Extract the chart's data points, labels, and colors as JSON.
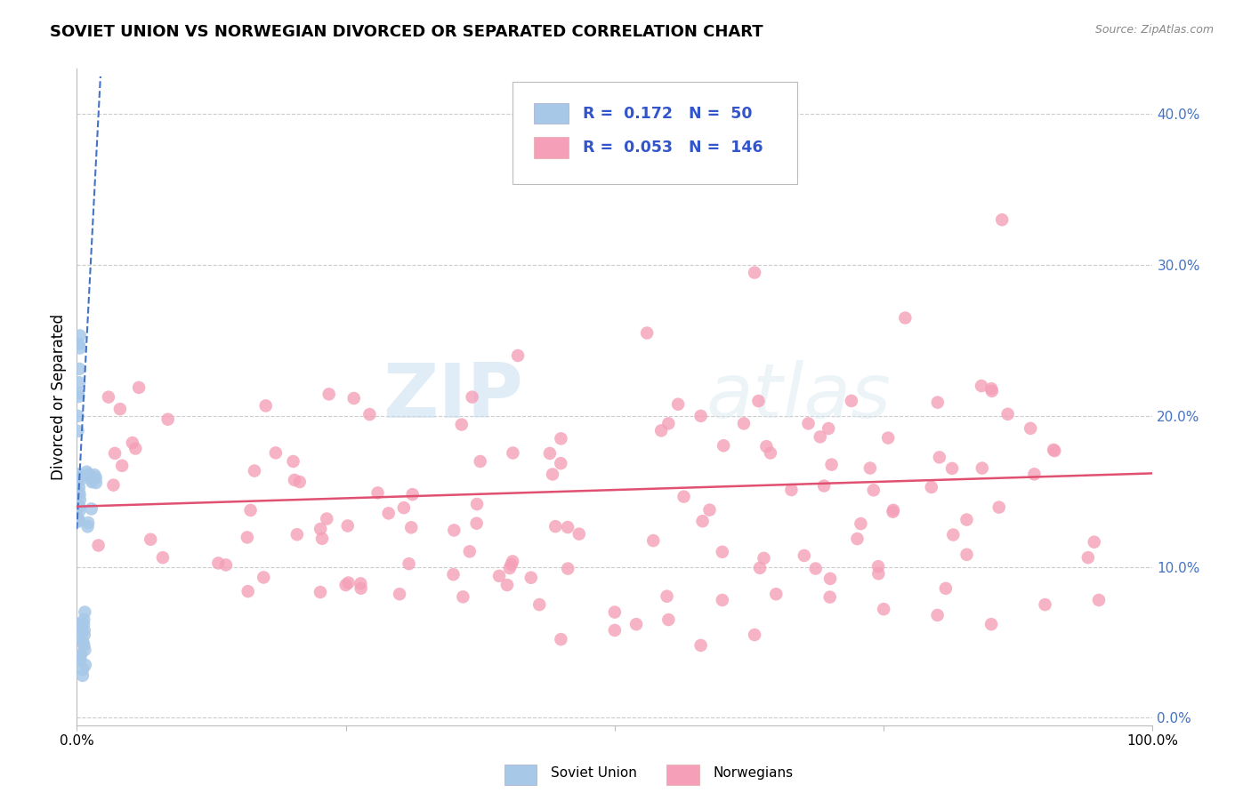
{
  "title": "SOVIET UNION VS NORWEGIAN DIVORCED OR SEPARATED CORRELATION CHART",
  "source_text": "Source: ZipAtlas.com",
  "ylabel": "Divorced or Separated",
  "legend_label1": "Soviet Union",
  "legend_label2": "Norwegians",
  "R1": "0.172",
  "N1": "50",
  "R2": "0.053",
  "N2": "146",
  "color_soviet": "#a8c8e8",
  "color_norwegian": "#f5a0b8",
  "color_soviet_line": "#4472c4",
  "color_norwegian_line": "#e05070",
  "background_color": "#ffffff",
  "grid_color": "#cccccc",
  "watermark_zip": "ZIP",
  "watermark_atlas": "atlas",
  "xlim": [
    0.0,
    1.0
  ],
  "ylim": [
    -0.005,
    0.43
  ],
  "yticks": [
    0.0,
    0.1,
    0.2,
    0.3,
    0.4
  ],
  "ytick_labels": [
    "0.0%",
    "10.0%",
    "20.0%",
    "30.0%",
    "40.0%"
  ],
  "xticks": [
    0.0,
    0.25,
    0.5,
    0.75,
    1.0
  ],
  "xtick_labels": [
    "0.0%",
    "",
    "",
    "",
    "100.0%"
  ],
  "title_fontsize": 13,
  "source_fontsize": 9,
  "tick_fontsize": 11,
  "soviet_line_x0": 0.0,
  "soviet_line_x1": 0.022,
  "soviet_line_y0": 0.125,
  "soviet_line_y1": 0.425,
  "norw_line_x0": 0.0,
  "norw_line_x1": 1.0,
  "norw_line_y0": 0.14,
  "norw_line_y1": 0.162
}
